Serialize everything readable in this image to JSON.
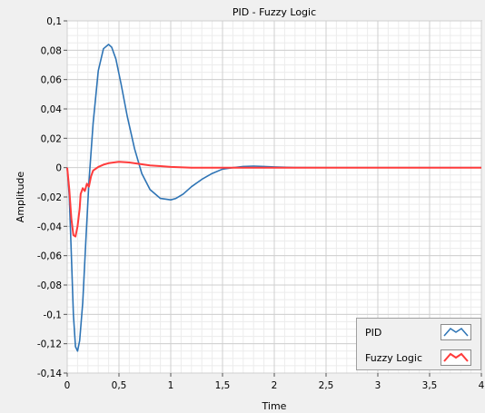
{
  "chart_data": {
    "type": "line",
    "title": "PID - Fuzzy Logic",
    "xlabel": "Time",
    "ylabel": "Amplitude",
    "xlim": [
      0,
      4
    ],
    "ylim": [
      -0.14,
      0.1
    ],
    "grid": true,
    "legend_position": "bottom-right",
    "x_ticks": [
      "0",
      "0,5",
      "1",
      "1,5",
      "2",
      "2,5",
      "3",
      "3,5",
      "4"
    ],
    "y_ticks": [
      "0,1",
      "0,08",
      "0,06",
      "0,04",
      "0,02",
      "0",
      "-0,02",
      "-0,04",
      "-0,06",
      "-0,08",
      "-0,1",
      "-0,12",
      "-0,14"
    ],
    "series": [
      {
        "name": "PID",
        "color": "#2e74b5",
        "x": [
          0,
          0.02,
          0.04,
          0.06,
          0.08,
          0.1,
          0.12,
          0.15,
          0.18,
          0.21,
          0.25,
          0.3,
          0.35,
          0.4,
          0.43,
          0.47,
          0.52,
          0.58,
          0.65,
          0.72,
          0.8,
          0.9,
          1.0,
          1.05,
          1.12,
          1.2,
          1.3,
          1.4,
          1.5,
          1.6,
          1.7,
          1.8,
          1.9,
          2.0,
          2.2,
          2.5,
          3.0,
          3.5,
          4.0
        ],
        "y": [
          0,
          -0.02,
          -0.06,
          -0.1,
          -0.122,
          -0.125,
          -0.118,
          -0.092,
          -0.05,
          -0.01,
          0.03,
          0.066,
          0.081,
          0.084,
          0.082,
          0.074,
          0.057,
          0.035,
          0.013,
          -0.004,
          -0.015,
          -0.021,
          -0.022,
          -0.021,
          -0.018,
          -0.013,
          -0.008,
          -0.004,
          -0.001,
          0.0,
          0.0008,
          0.001,
          0.0008,
          0.0005,
          0.0001,
          0,
          0,
          0,
          0
        ]
      },
      {
        "name": "Fuzzy Logic",
        "color": "#ff3b3b",
        "x": [
          0,
          0.02,
          0.04,
          0.06,
          0.08,
          0.1,
          0.12,
          0.13,
          0.15,
          0.17,
          0.19,
          0.21,
          0.23,
          0.25,
          0.3,
          0.35,
          0.4,
          0.5,
          0.6,
          0.7,
          0.8,
          0.9,
          1.0,
          1.2,
          1.5,
          2.0,
          2.5,
          3.0,
          3.5,
          4.0
        ],
        "y": [
          0,
          -0.015,
          -0.035,
          -0.046,
          -0.047,
          -0.04,
          -0.028,
          -0.018,
          -0.014,
          -0.016,
          -0.011,
          -0.013,
          -0.006,
          -0.002,
          0.0005,
          0.002,
          0.003,
          0.004,
          0.0035,
          0.0025,
          0.0015,
          0.001,
          0.0005,
          0.0,
          0.0,
          0,
          0,
          0,
          0,
          0
        ]
      }
    ]
  }
}
